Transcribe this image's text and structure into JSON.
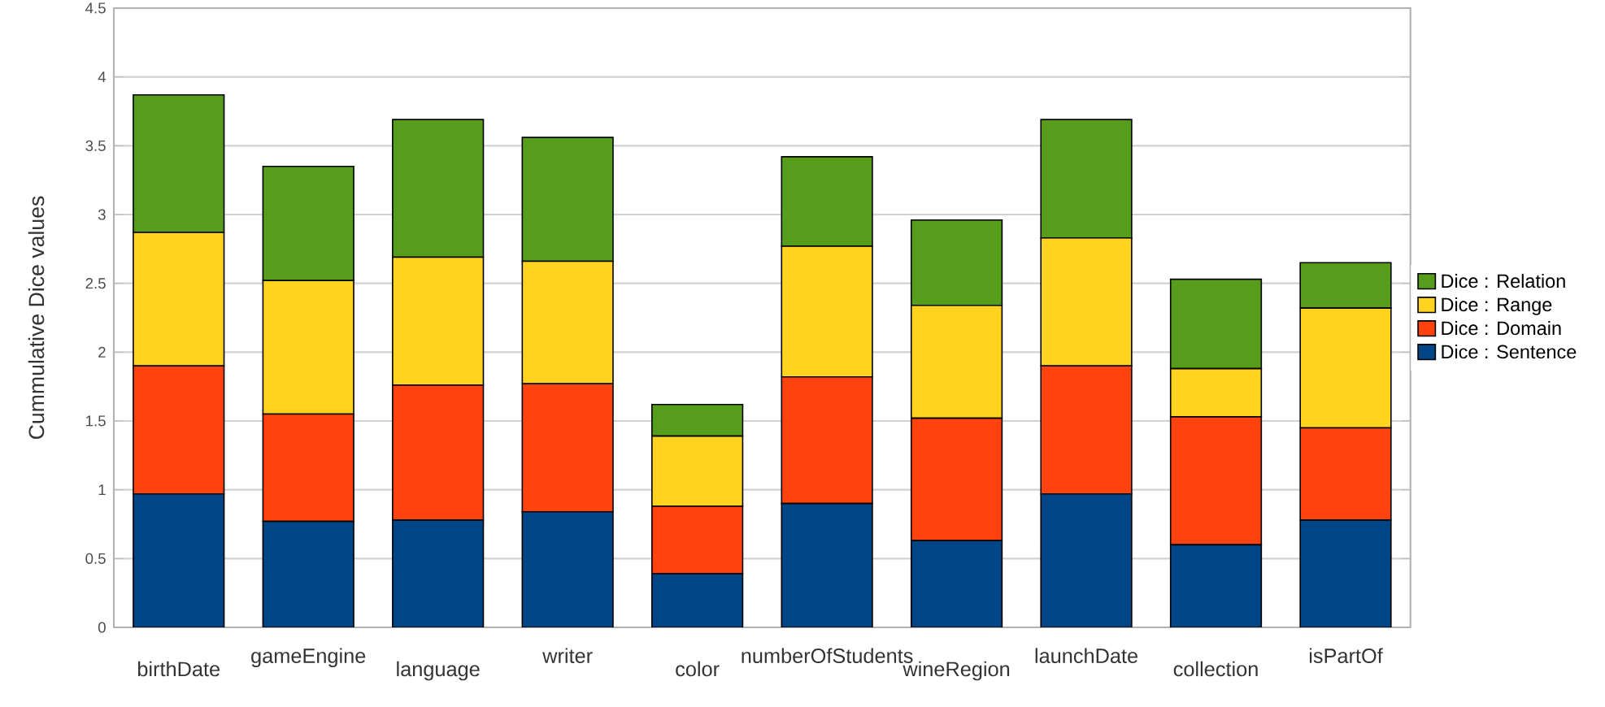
{
  "chart_data": {
    "type": "bar",
    "stacked": true,
    "ylabel": "Cummulative Dice values",
    "categories": [
      "birthDate",
      "gameEngine",
      "language",
      "writer",
      "color",
      "numberOfStudents",
      "wineRegion",
      "launchDate",
      "collection",
      "isPartOf"
    ],
    "series": [
      {
        "name": "Dice : Sentence",
        "color": "#004586",
        "values": [
          0.97,
          0.77,
          0.78,
          0.84,
          0.39,
          0.9,
          0.63,
          0.97,
          0.6,
          0.78
        ]
      },
      {
        "name": "Dice : Domain",
        "color": "#ff420e",
        "values": [
          0.93,
          0.78,
          0.98,
          0.93,
          0.49,
          0.92,
          0.89,
          0.93,
          0.93,
          0.67
        ]
      },
      {
        "name": "Dice : Range",
        "color": "#ffd320",
        "values": [
          0.97,
          0.97,
          0.93,
          0.89,
          0.51,
          0.95,
          0.82,
          0.93,
          0.35,
          0.87
        ]
      },
      {
        "name": "Dice : Relation",
        "color": "#579d1c",
        "values": [
          1.0,
          0.83,
          1.0,
          0.9,
          0.23,
          0.65,
          0.62,
          0.86,
          0.65,
          0.33
        ]
      }
    ],
    "ylim": [
      0,
      4.5
    ],
    "yticks": [
      0,
      0.5,
      1,
      1.5,
      2,
      2.5,
      3,
      3.5,
      4,
      4.5
    ],
    "grid": "y",
    "legend": "right"
  }
}
